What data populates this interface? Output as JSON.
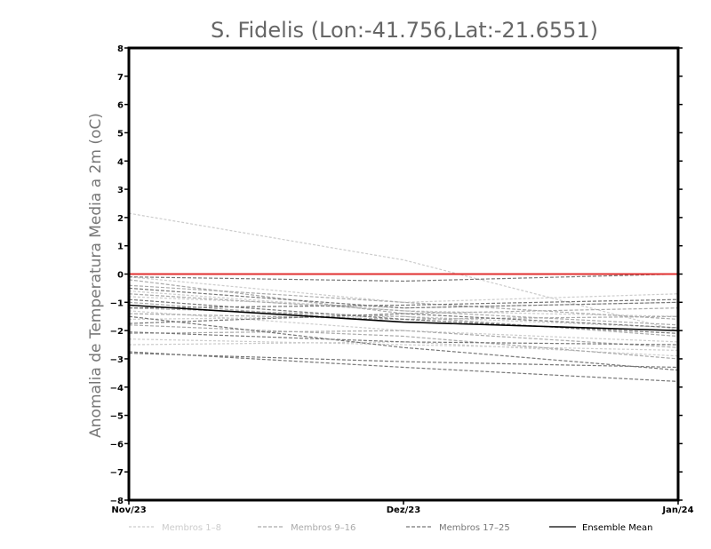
{
  "chart_data": {
    "type": "line",
    "title": "S. Fidelis (Lon:-41.756,Lat:-21.6551)",
    "xlabel": "",
    "ylabel": "Anomalia de Temperatura Media a 2m (oC)",
    "categories": [
      "Nov/23",
      "Dez/23",
      "Jan/24"
    ],
    "ylim": [
      -8,
      8
    ],
    "yticks": [
      -8,
      -7,
      -6,
      -5,
      -4,
      -3,
      -2,
      -1,
      0,
      1,
      2,
      3,
      4,
      5,
      6,
      7,
      8
    ],
    "grid": false,
    "legend_position": "bottom",
    "zero_line_color": "#e03030",
    "groups": [
      {
        "name": "Membros 1-8",
        "color": "#cccccc",
        "dash": "dotted",
        "members": [
          [
            2.15,
            0.5,
            -2.0
          ],
          [
            -0.1,
            -1.0,
            -0.7
          ],
          [
            -0.6,
            -1.3,
            -1.5
          ],
          [
            -0.8,
            -1.2,
            -1.0
          ],
          [
            -1.3,
            -2.0,
            -2.4
          ],
          [
            -2.3,
            -2.5,
            -2.7
          ],
          [
            -2.5,
            -2.4,
            -2.9
          ],
          [
            -1.6,
            -1.5,
            -1.9
          ]
        ]
      },
      {
        "name": "Membros 9-16",
        "color": "#aaaaaa",
        "dash": "dashed",
        "members": [
          [
            -0.4,
            -1.0,
            -1.6
          ],
          [
            -0.7,
            -1.3,
            -1.8
          ],
          [
            -1.0,
            -1.7,
            -2.0
          ],
          [
            -1.4,
            -1.6,
            -1.5
          ],
          [
            -1.8,
            -2.2,
            -3.0
          ],
          [
            -2.1,
            -2.0,
            -2.6
          ],
          [
            -0.2,
            -1.4,
            -1.2
          ],
          [
            -1.2,
            -1.5,
            -2.2
          ]
        ]
      },
      {
        "name": "Membros 17-25",
        "color": "#777777",
        "dash": "dashed",
        "members": [
          [
            -0.1,
            -0.25,
            0.0
          ],
          [
            -0.5,
            -1.2,
            -1.0
          ],
          [
            -0.9,
            -1.6,
            -2.1
          ],
          [
            -1.2,
            -1.1,
            -0.9
          ],
          [
            -1.5,
            -2.6,
            -3.4
          ],
          [
            -1.75,
            -1.4,
            -1.9
          ],
          [
            -2.05,
            -2.4,
            -2.5
          ],
          [
            -2.8,
            -3.1,
            -3.3
          ],
          [
            -2.75,
            -3.3,
            -3.8
          ]
        ]
      }
    ],
    "ensemble_mean": {
      "name": "Ensemble Mean",
      "color": "#000000",
      "values": [
        -1.1,
        -1.7,
        -2.0
      ]
    }
  }
}
